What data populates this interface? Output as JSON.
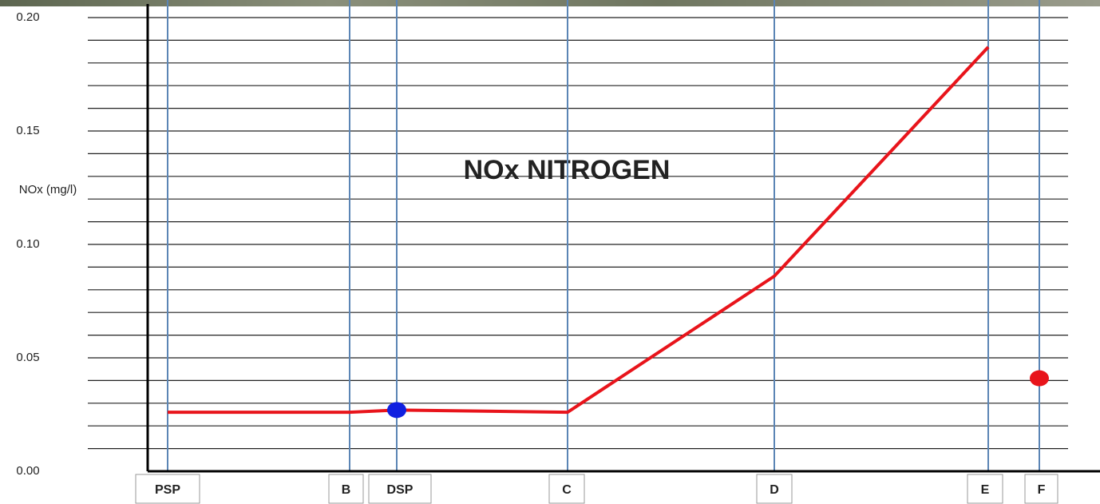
{
  "chart_data": {
    "type": "line",
    "title": "NOx NITROGEN",
    "y_label": "NOx (mg/l)",
    "categories": [
      "PSP",
      "B",
      "DSP",
      "C",
      "D",
      "E",
      "F"
    ],
    "series": [
      {
        "style": "line",
        "color": "#e8141b",
        "values": [
          0.026,
          0.026,
          0.027,
          0.026,
          0.086,
          0.187,
          null
        ]
      },
      {
        "style": "point",
        "color": "#1020e0",
        "values": [
          null,
          null,
          0.027,
          null,
          null,
          null,
          null
        ]
      },
      {
        "style": "point",
        "color": "#e8141b",
        "values": [
          null,
          null,
          null,
          null,
          null,
          null,
          0.041
        ]
      }
    ],
    "ylim": [
      0,
      0.2
    ],
    "yticks": [
      {
        "value": 0,
        "label": "0.00"
      },
      {
        "value": 0.05,
        "label": "0.05"
      },
      {
        "value": 0.1,
        "label": "0.10"
      },
      {
        "value": 0.15,
        "label": "0.15"
      },
      {
        "value": 0.2,
        "label": "0.20"
      }
    ],
    "minor_yticks": [
      0.01,
      0.02,
      0.03,
      0.04,
      0.06,
      0.07,
      0.08,
      0.09,
      0.11,
      0.12,
      0.13,
      0.14,
      0.16,
      0.17,
      0.18,
      0.19
    ],
    "grid": true
  }
}
